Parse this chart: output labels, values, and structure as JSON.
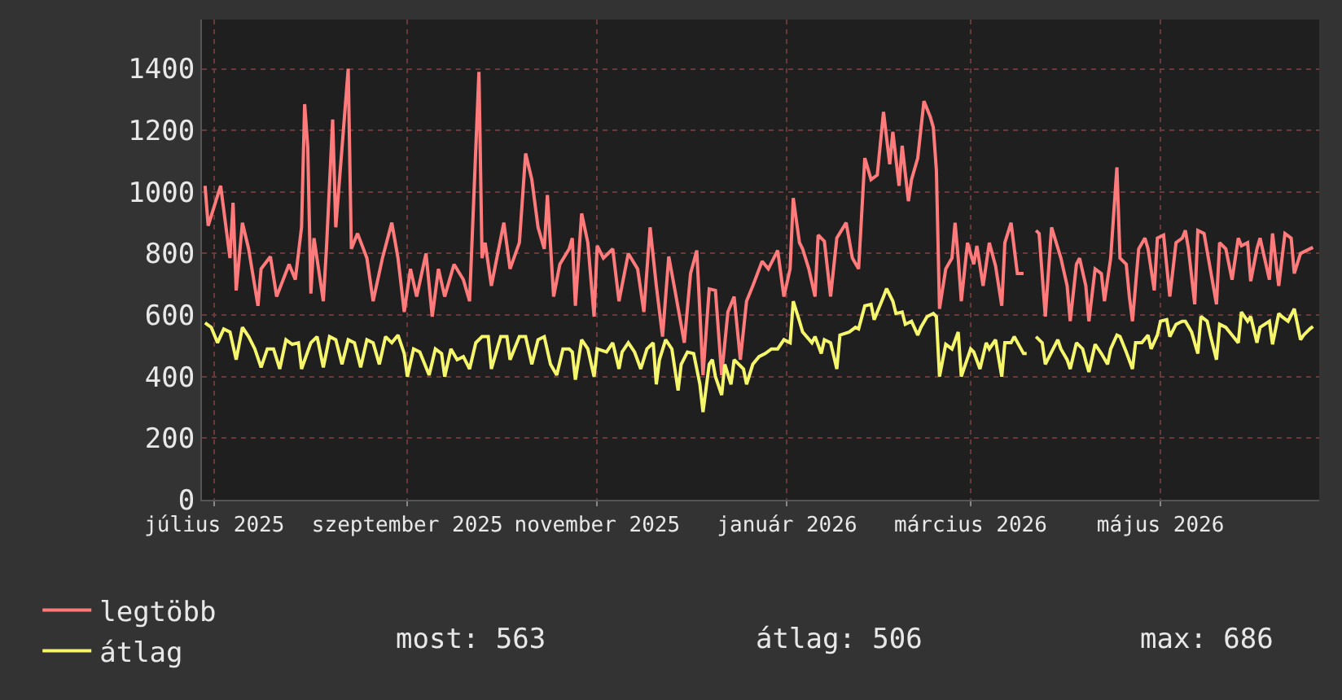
{
  "chart_data": {
    "type": "line",
    "xlim": [
      "2025-06-27",
      "2026-06-21"
    ],
    "xticks": [
      {
        "value": "2025-07-01",
        "label": "július 2025"
      },
      {
        "value": "2025-09-01",
        "label": "szeptember 2025"
      },
      {
        "value": "2025-11-01",
        "label": "november 2025"
      },
      {
        "value": "2026-01-01",
        "label": "január 2026"
      },
      {
        "value": "2026-03-01",
        "label": "március 2026"
      },
      {
        "value": "2026-05-01",
        "label": "május 2026"
      }
    ],
    "ylim": [
      0,
      1560
    ],
    "yticks": [
      0,
      200,
      400,
      600,
      800,
      1000,
      1200,
      1400
    ],
    "grid": true,
    "legend": "bottom left",
    "annotations": [
      "most: 563",
      "átlag: 506",
      "max: 686"
    ],
    "series": [
      {
        "name": "legtöbb",
        "color": "#ff7b7b",
        "x": [
          "2025-06-28",
          "2025-06-29",
          "2025-07-03",
          "2025-07-06",
          "2025-07-07",
          "2025-07-08",
          "2025-07-10",
          "2025-07-12",
          "2025-07-15",
          "2025-07-16",
          "2025-07-19",
          "2025-07-21",
          "2025-07-25",
          "2025-07-27",
          "2025-07-29",
          "2025-07-30",
          "2025-07-31",
          "2025-08-01",
          "2025-08-02",
          "2025-08-05",
          "2025-08-06",
          "2025-08-08",
          "2025-08-09",
          "2025-08-13",
          "2025-08-14",
          "2025-08-16",
          "2025-08-19",
          "2025-08-21",
          "2025-08-24",
          "2025-08-27",
          "2025-08-29",
          "2025-08-31",
          "2025-09-02",
          "2025-09-04",
          "2025-09-07",
          "2025-09-09",
          "2025-09-11",
          "2025-09-13",
          "2025-09-16",
          "2025-09-19",
          "2025-09-21",
          "2025-09-24",
          "2025-09-25",
          "2025-09-26",
          "2025-09-28",
          "2025-10-02",
          "2025-10-04",
          "2025-10-07",
          "2025-10-09",
          "2025-10-11",
          "2025-10-13",
          "2025-10-15",
          "2025-10-16",
          "2025-10-18",
          "2025-10-20",
          "2025-10-23",
          "2025-10-24",
          "2025-10-25",
          "2025-10-27",
          "2025-10-29",
          "2025-10-31",
          "2025-11-01",
          "2025-11-03",
          "2025-11-06",
          "2025-11-08",
          "2025-11-11",
          "2025-11-14",
          "2025-11-16",
          "2025-11-18",
          "2025-11-20",
          "2025-11-22",
          "2025-11-24",
          "2025-11-26",
          "2025-11-29",
          "2025-12-01",
          "2025-12-03",
          "2025-12-05",
          "2025-12-07",
          "2025-12-09",
          "2025-12-11",
          "2025-12-13",
          "2025-12-15",
          "2025-12-17",
          "2025-12-19",
          "2025-12-21",
          "2025-12-24",
          "2025-12-26",
          "2025-12-29",
          "2025-12-31",
          "2026-01-02",
          "2026-01-03",
          "2026-01-05",
          "2026-01-06",
          "2026-01-08",
          "2026-01-10",
          "2026-01-11",
          "2026-01-13",
          "2026-01-15",
          "2026-01-17",
          "2026-01-20",
          "2026-01-22",
          "2026-01-24",
          "2026-01-26",
          "2026-01-28",
          "2026-01-30",
          "2026-02-01",
          "2026-02-03",
          "2026-02-04",
          "2026-02-06",
          "2026-02-07",
          "2026-02-09",
          "2026-02-10",
          "2026-02-12",
          "2026-02-14",
          "2026-02-16",
          "2026-02-17",
          "2026-02-18",
          "2026-02-19",
          "2026-02-21",
          "2026-02-23",
          "2026-02-24",
          "2026-02-25",
          "2026-02-26",
          "2026-02-28",
          "2026-03-02",
          "2026-03-03",
          "2026-03-05",
          "2026-03-07",
          "2026-03-09",
          "2026-03-11",
          "2026-03-12",
          "2026-03-14",
          "2026-03-16",
          "2026-03-18",
          "2026-03-20",
          "2026-03-22",
          "2026-03-23",
          "2026-03-25",
          "2026-03-27",
          "2026-03-30",
          "2026-04-01",
          "2026-04-02",
          "2026-04-04",
          "2026-04-05",
          "2026-04-07",
          "2026-04-08",
          "2026-04-10",
          "2026-04-12",
          "2026-04-13",
          "2026-04-15",
          "2026-04-17",
          "2026-04-18",
          "2026-04-20",
          "2026-04-21",
          "2026-04-22",
          "2026-04-24",
          "2026-04-26",
          "2026-04-27",
          "2026-04-29",
          "2026-04-30",
          "2026-05-02",
          "2026-05-04",
          "2026-05-06",
          "2026-05-08",
          "2026-05-09",
          "2026-05-10",
          "2026-05-12",
          "2026-05-13",
          "2026-05-15",
          "2026-05-17",
          "2026-05-19",
          "2026-05-20",
          "2026-05-22",
          "2026-05-24",
          "2026-05-26",
          "2026-05-27",
          "2026-05-29",
          "2026-05-30",
          "2026-06-01",
          "2026-06-02",
          "2026-06-05",
          "2026-06-06",
          "2026-06-08",
          "2026-06-10",
          "2026-06-12",
          "2026-06-13",
          "2026-06-15",
          "2026-06-17",
          "2026-06-19"
        ],
        "values": [
          1020,
          890,
          1020,
          785,
          965,
          680,
          900,
          815,
          630,
          750,
          790,
          660,
          765,
          715,
          885,
          1285,
          1145,
          670,
          850,
          645,
          815,
          1235,
          885,
          1400,
          815,
          865,
          785,
          645,
          785,
          900,
          785,
          610,
          750,
          660,
          800,
          595,
          750,
          660,
          765,
          715,
          645,
          1390,
          785,
          835,
          695,
          900,
          750,
          835,
          1125,
          1040,
          885,
          815,
          990,
          660,
          765,
          815,
          850,
          630,
          930,
          835,
          595,
          825,
          785,
          815,
          645,
          800,
          750,
          610,
          885,
          695,
          530,
          790,
          680,
          510,
          735,
          810,
          405,
          685,
          680,
          405,
          610,
          660,
          455,
          645,
          695,
          775,
          750,
          810,
          660,
          750,
          980,
          835,
          815,
          750,
          660,
          860,
          840,
          660,
          850,
          900,
          785,
          750,
          1110,
          1040,
          1055,
          1260,
          1090,
          1195,
          1020,
          1150,
          970,
          1040,
          1110,
          1295,
          1245,
          1210,
          1070,
          620,
          750,
          785,
          900,
          785,
          645,
          835,
          765,
          825,
          695,
          835,
          760,
          630,
          835,
          900,
          735,
          735,
          null,
          875,
          865,
          595,
          885,
          785,
          695,
          580,
          765,
          785,
          695,
          580,
          750,
          735,
          645,
          785,
          1080,
          785,
          765,
          660,
          580,
          815,
          850,
          815,
          680,
          850,
          860,
          660,
          835,
          850,
          875,
          815,
          635,
          875,
          865,
          750,
          635,
          835,
          815,
          715,
          850,
          825,
          835,
          710,
          815,
          850,
          715,
          865,
          695,
          865,
          850,
          735,
          800,
          810,
          820
        ]
      },
      {
        "name": "átlag",
        "color": "#f6f66c",
        "x": [
          "2025-06-28",
          "2025-06-30",
          "2025-07-02",
          "2025-07-04",
          "2025-07-06",
          "2025-07-08",
          "2025-07-10",
          "2025-07-12",
          "2025-07-14",
          "2025-07-16",
          "2025-07-18",
          "2025-07-20",
          "2025-07-22",
          "2025-07-24",
          "2025-07-26",
          "2025-07-28",
          "2025-07-29",
          "2025-08-01",
          "2025-08-03",
          "2025-08-05",
          "2025-08-07",
          "2025-08-09",
          "2025-08-11",
          "2025-08-13",
          "2025-08-15",
          "2025-08-17",
          "2025-08-19",
          "2025-08-21",
          "2025-08-23",
          "2025-08-25",
          "2025-08-27",
          "2025-08-29",
          "2025-08-31",
          "2025-09-01",
          "2025-09-03",
          "2025-09-05",
          "2025-09-08",
          "2025-09-10",
          "2025-09-12",
          "2025-09-13",
          "2025-09-15",
          "2025-09-17",
          "2025-09-19",
          "2025-09-21",
          "2025-09-23",
          "2025-09-25",
          "2025-09-27",
          "2025-09-28",
          "2025-10-01",
          "2025-10-03",
          "2025-10-04",
          "2025-10-07",
          "2025-10-09",
          "2025-10-11",
          "2025-10-13",
          "2025-10-15",
          "2025-10-17",
          "2025-10-19",
          "2025-10-21",
          "2025-10-23",
          "2025-10-24",
          "2025-10-25",
          "2025-10-27",
          "2025-10-29",
          "2025-10-31",
          "2025-11-01",
          "2025-11-04",
          "2025-11-06",
          "2025-11-08",
          "2025-11-09",
          "2025-11-11",
          "2025-11-13",
          "2025-11-15",
          "2025-11-17",
          "2025-11-19",
          "2025-11-20",
          "2025-11-21",
          "2025-11-23",
          "2025-11-25",
          "2025-11-27",
          "2025-11-28",
          "2025-11-30",
          "2025-12-02",
          "2025-12-04",
          "2025-12-05",
          "2025-12-07",
          "2025-12-08",
          "2025-12-09",
          "2025-12-11",
          "2025-12-12",
          "2025-12-14",
          "2025-12-15",
          "2025-12-18",
          "2025-12-19",
          "2025-12-21",
          "2025-12-23",
          "2025-12-25",
          "2025-12-27",
          "2025-12-29",
          "2025-12-31",
          "2026-01-02",
          "2026-01-03",
          "2026-01-05",
          "2026-01-06",
          "2026-01-09",
          "2026-01-10",
          "2026-01-12",
          "2026-01-13",
          "2026-01-15",
          "2026-01-17",
          "2026-01-18",
          "2026-01-21",
          "2026-01-23",
          "2026-01-24",
          "2026-01-26",
          "2026-01-28",
          "2026-01-29",
          "2026-02-01",
          "2026-02-02",
          "2026-02-04",
          "2026-02-05",
          "2026-02-07",
          "2026-02-08",
          "2026-02-10",
          "2026-02-12",
          "2026-02-13",
          "2026-02-15",
          "2026-02-17",
          "2026-02-18",
          "2026-02-19",
          "2026-02-21",
          "2026-02-23",
          "2026-02-25",
          "2026-02-26",
          "2026-03-01",
          "2026-03-02",
          "2026-03-04",
          "2026-03-06",
          "2026-03-07",
          "2026-03-09",
          "2026-03-11",
          "2026-03-12",
          "2026-03-14",
          "2026-03-15",
          "2026-03-18",
          "2026-03-19",
          "2026-03-21",
          "2026-03-22",
          "2026-03-24",
          "2026-03-25",
          "2026-03-27",
          "2026-03-29",
          "2026-03-30",
          "2026-04-01",
          "2026-04-02",
          "2026-04-04",
          "2026-04-06",
          "2026-04-07",
          "2026-04-08",
          "2026-04-10",
          "2026-04-12",
          "2026-04-14",
          "2026-04-15",
          "2026-04-17",
          "2026-04-18",
          "2026-04-20",
          "2026-04-22",
          "2026-04-23",
          "2026-04-25",
          "2026-04-27",
          "2026-04-28",
          "2026-04-30",
          "2026-05-01",
          "2026-05-03",
          "2026-05-04",
          "2026-05-06",
          "2026-05-08",
          "2026-05-09",
          "2026-05-11",
          "2026-05-13",
          "2026-05-14",
          "2026-05-16",
          "2026-05-17",
          "2026-05-19",
          "2026-05-20",
          "2026-05-22",
          "2026-05-24",
          "2026-05-26",
          "2026-05-27",
          "2026-05-29",
          "2026-05-30",
          "2026-06-01",
          "2026-06-02",
          "2026-06-05",
          "2026-06-06",
          "2026-06-08",
          "2026-06-09",
          "2026-06-11",
          "2026-06-13",
          "2026-06-15",
          "2026-06-16",
          "2026-06-18",
          "2026-06-19"
        ],
        "values": [
          575,
          560,
          510,
          555,
          545,
          455,
          560,
          530,
          490,
          430,
          490,
          490,
          425,
          520,
          505,
          510,
          425,
          510,
          530,
          430,
          530,
          520,
          440,
          520,
          510,
          430,
          520,
          510,
          440,
          530,
          510,
          535,
          475,
          400,
          490,
          480,
          405,
          490,
          475,
          400,
          490,
          455,
          465,
          425,
          510,
          530,
          530,
          425,
          530,
          530,
          455,
          530,
          530,
          440,
          520,
          530,
          440,
          405,
          490,
          490,
          480,
          390,
          520,
          490,
          400,
          490,
          480,
          510,
          425,
          480,
          510,
          480,
          425,
          490,
          510,
          375,
          455,
          520,
          490,
          355,
          440,
          480,
          475,
          375,
          285,
          440,
          455,
          400,
          340,
          440,
          375,
          455,
          425,
          375,
          440,
          465,
          475,
          490,
          490,
          520,
          510,
          645,
          580,
          545,
          510,
          530,
          475,
          520,
          510,
          425,
          535,
          545,
          560,
          555,
          630,
          635,
          585,
          660,
          686,
          645,
          605,
          610,
          570,
          580,
          535,
          560,
          595,
          605,
          595,
          400,
          505,
          490,
          545,
          400,
          490,
          480,
          425,
          510,
          490,
          520,
          400,
          510,
          510,
          530,
          475,
          475,
          null,
          530,
          510,
          440,
          480,
          520,
          490,
          455,
          425,
          510,
          490,
          450,
          415,
          505,
          475,
          440,
          490,
          535,
          530,
          480,
          425,
          510,
          510,
          535,
          490,
          535,
          580,
          585,
          530,
          570,
          580,
          580,
          545,
          475,
          595,
          580,
          535,
          455,
          570,
          560,
          535,
          510,
          610,
          580,
          595,
          510,
          560,
          580,
          505,
          605,
          595,
          580,
          620,
          520,
          535,
          555,
          563
        ]
      }
    ]
  }
}
